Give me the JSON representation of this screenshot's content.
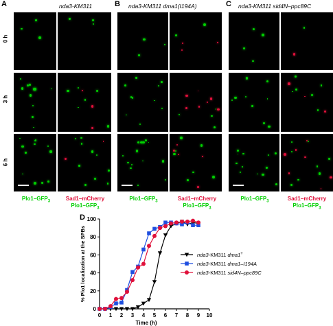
{
  "panels": [
    {
      "letter": "A",
      "title": "nda3-KM311"
    },
    {
      "letter": "B",
      "title": "nda3-KM311 dma1(I194A)"
    },
    {
      "letter": "C",
      "title": "nda3-KM311 sid4N–ppc89C"
    }
  ],
  "row_labels": [
    "0 h",
    "3 h",
    "6 h"
  ],
  "channel_labels": {
    "plo1": "Plo1–GFP",
    "plo1_sub": "3",
    "sad1": "Sad1–mCherry",
    "merge_plo1": "Plo1–GFP",
    "merge_sub": "3"
  },
  "colors": {
    "green": "#00d000",
    "red": "#e0103a",
    "black_series": "#000000",
    "blue_series": "#1f4fe0",
    "red_series": "#e0103a"
  },
  "panel_d": {
    "letter": "D"
  },
  "chart_data": {
    "type": "line",
    "title": "",
    "xlabel": "Time (h)",
    "ylabel": "% Plo1 localization at the SPBs",
    "xlim": [
      0,
      10
    ],
    "ylim": [
      0,
      100
    ],
    "xticks": [
      0,
      1,
      2,
      3,
      4,
      5,
      6,
      7,
      8,
      9,
      10
    ],
    "yticks": [
      0,
      20,
      40,
      60,
      80,
      100
    ],
    "legend_placement": "center-right",
    "series": [
      {
        "name_prefix": "nda3-",
        "name_main": "KM311 ",
        "name_italic": "dma1",
        "name_sup": "+",
        "marker": "triangle-down",
        "color": "#000000",
        "x": [
          0,
          0.5,
          1,
          1.5,
          2,
          2.5,
          3,
          3.5,
          4,
          4.5,
          5,
          5.5,
          6,
          6.5,
          7,
          7.5,
          8,
          8.5,
          9
        ],
        "y": [
          0,
          0,
          0,
          0,
          0,
          0,
          0,
          2,
          6,
          10,
          30,
          62,
          82,
          92,
          95,
          97,
          94,
          96,
          95
        ]
      },
      {
        "name_prefix": "nda3-",
        "name_main": "KM311 ",
        "name_italic": "dma1–I194A",
        "name_sup": "",
        "marker": "square",
        "color": "#1f4fe0",
        "x": [
          0,
          0.5,
          1,
          1.5,
          2,
          2.5,
          3,
          3.5,
          4,
          4.5,
          5,
          5.5,
          6,
          6.5,
          7,
          7.5,
          8,
          8.5,
          9
        ],
        "y": [
          0,
          0,
          2,
          6,
          7,
          21,
          41,
          47,
          66,
          84,
          89,
          91,
          96,
          96,
          95,
          94,
          96,
          93,
          93
        ]
      },
      {
        "name_prefix": "nda3-",
        "name_main": "KM311 ",
        "name_italic": "sid4N–ppc89C",
        "name_sup": "",
        "marker": "circle",
        "color": "#e0103a",
        "x": [
          0,
          0.5,
          1,
          1.5,
          2,
          2.5,
          3,
          3.5,
          4,
          4.5,
          5,
          5.5,
          6,
          6.5,
          7,
          7.5,
          8,
          8.5,
          9
        ],
        "y": [
          0,
          0,
          3,
          11,
          12,
          19,
          32,
          46,
          50,
          70,
          81,
          90,
          92,
          95,
          96,
          97,
          97,
          98,
          96
        ]
      }
    ]
  }
}
